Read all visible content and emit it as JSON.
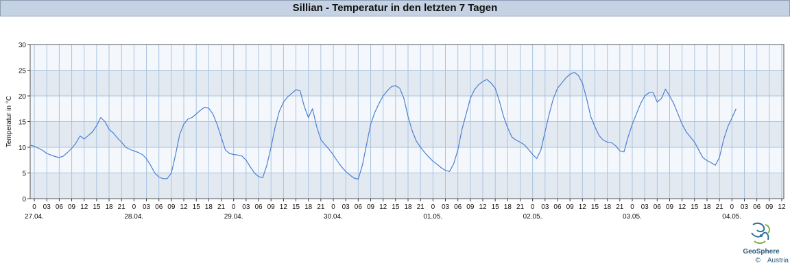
{
  "title": "Sillian - Temperatur in den letzten 7 Tagen",
  "logo": {
    "name": "GeoSphere",
    "sub": "Austria",
    "copyright": "©"
  },
  "colors": {
    "line": "#4a7fd4",
    "band_dark": "#e3e9f1",
    "band_light": "#f4f7fb",
    "grid": "#a9c4df",
    "title_bg": "#c5d2e3"
  },
  "chart_data": {
    "type": "line",
    "title": "Sillian - Temperatur in den letzten 7 Tagen",
    "ylabel": "Temperatur in °C",
    "xlabel": "",
    "ylim": [
      0,
      30
    ],
    "yticks": [
      0,
      5,
      10,
      15,
      20,
      25,
      30
    ],
    "xlim_hours": [
      -1,
      180.5
    ],
    "x_tick_labels": [
      "0",
      "03",
      "06",
      "09",
      "12",
      "15",
      "18",
      "21",
      "0",
      "03",
      "06",
      "09",
      "12",
      "15",
      "18",
      "21",
      "0",
      "03",
      "06",
      "09",
      "12",
      "15",
      "18",
      "21",
      "0",
      "03",
      "06",
      "09",
      "12",
      "15",
      "18",
      "21",
      "0",
      "03",
      "06",
      "09",
      "12",
      "15",
      "18",
      "21",
      "0",
      "03",
      "06",
      "09",
      "12",
      "15",
      "18",
      "21",
      "0",
      "03",
      "06",
      "09",
      "12",
      "15",
      "18",
      "21",
      "0",
      "03",
      "06",
      "09",
      "12"
    ],
    "dates": [
      "27.04.",
      "28.04.",
      "29.04.",
      "30.04.",
      "01.05.",
      "02.05.",
      "03.05.",
      "04.05."
    ],
    "grid": true,
    "series": [
      {
        "points": [
          [
            -1,
            10.4
          ],
          [
            0,
            10.2
          ],
          [
            1,
            9.8
          ],
          [
            2,
            9.4
          ],
          [
            3,
            8.8
          ],
          [
            4,
            8.5
          ],
          [
            5,
            8.2
          ],
          [
            6,
            8.0
          ],
          [
            7,
            8.3
          ],
          [
            8,
            9.0
          ],
          [
            9,
            9.8
          ],
          [
            10,
            10.8
          ],
          [
            11,
            12.2
          ],
          [
            12,
            11.6
          ],
          [
            13,
            12.3
          ],
          [
            14,
            13.0
          ],
          [
            15,
            14.2
          ],
          [
            16,
            15.8
          ],
          [
            17,
            15.0
          ],
          [
            18,
            13.5
          ],
          [
            19,
            12.8
          ],
          [
            20,
            11.8
          ],
          [
            21,
            11.0
          ],
          [
            22,
            10.0
          ],
          [
            23,
            9.6
          ],
          [
            24,
            9.3
          ],
          [
            25,
            9.0
          ],
          [
            26,
            8.6
          ],
          [
            27,
            7.8
          ],
          [
            28,
            6.5
          ],
          [
            29,
            5.0
          ],
          [
            30,
            4.2
          ],
          [
            31,
            3.9
          ],
          [
            32,
            3.9
          ],
          [
            33,
            5.0
          ],
          [
            34,
            8.5
          ],
          [
            35,
            12.5
          ],
          [
            36,
            14.5
          ],
          [
            37,
            15.5
          ],
          [
            38,
            15.8
          ],
          [
            39,
            16.5
          ],
          [
            40,
            17.2
          ],
          [
            41,
            17.8
          ],
          [
            42,
            17.6
          ],
          [
            43,
            16.5
          ],
          [
            44,
            14.5
          ],
          [
            45,
            12.0
          ],
          [
            46,
            9.5
          ],
          [
            47,
            8.8
          ],
          [
            48,
            8.6
          ],
          [
            49,
            8.5
          ],
          [
            50,
            8.3
          ],
          [
            51,
            7.5
          ],
          [
            52,
            6.2
          ],
          [
            53,
            5.0
          ],
          [
            54,
            4.3
          ],
          [
            55,
            4.1
          ],
          [
            56,
            6.5
          ],
          [
            57,
            10.0
          ],
          [
            58,
            14.0
          ],
          [
            59,
            17.0
          ],
          [
            60,
            18.8
          ],
          [
            61,
            19.8
          ],
          [
            62,
            20.5
          ],
          [
            63,
            21.2
          ],
          [
            64,
            21.0
          ],
          [
            65,
            18.0
          ],
          [
            66,
            15.8
          ],
          [
            67,
            17.5
          ],
          [
            68,
            14.0
          ],
          [
            69,
            11.5
          ],
          [
            70,
            10.5
          ],
          [
            71,
            9.6
          ],
          [
            72,
            8.5
          ],
          [
            73,
            7.3
          ],
          [
            74,
            6.2
          ],
          [
            75,
            5.3
          ],
          [
            76,
            4.6
          ],
          [
            77,
            4.0
          ],
          [
            78,
            3.8
          ],
          [
            79,
            6.5
          ],
          [
            80,
            10.5
          ],
          [
            81,
            14.5
          ],
          [
            82,
            16.8
          ],
          [
            83,
            18.5
          ],
          [
            84,
            20.0
          ],
          [
            85,
            21.0
          ],
          [
            86,
            21.8
          ],
          [
            87,
            22.0
          ],
          [
            88,
            21.5
          ],
          [
            89,
            19.5
          ],
          [
            90,
            16.0
          ],
          [
            91,
            13.2
          ],
          [
            92,
            11.2
          ],
          [
            93,
            10.0
          ],
          [
            94,
            9.0
          ],
          [
            95,
            8.1
          ],
          [
            96,
            7.3
          ],
          [
            97,
            6.7
          ],
          [
            98,
            6.0
          ],
          [
            99,
            5.5
          ],
          [
            100,
            5.3
          ],
          [
            101,
            6.8
          ],
          [
            102,
            9.5
          ],
          [
            103,
            13.5
          ],
          [
            104,
            16.5
          ],
          [
            105,
            19.5
          ],
          [
            106,
            21.2
          ],
          [
            107,
            22.2
          ],
          [
            108,
            22.8
          ],
          [
            109,
            23.2
          ],
          [
            110,
            22.5
          ],
          [
            111,
            21.5
          ],
          [
            112,
            19.0
          ],
          [
            113,
            16.0
          ],
          [
            114,
            13.8
          ],
          [
            115,
            12.0
          ],
          [
            116,
            11.4
          ],
          [
            117,
            11.0
          ],
          [
            118,
            10.5
          ],
          [
            119,
            9.6
          ],
          [
            120,
            8.6
          ],
          [
            121,
            7.8
          ],
          [
            122,
            9.5
          ],
          [
            123,
            13.0
          ],
          [
            124,
            16.5
          ],
          [
            125,
            19.5
          ],
          [
            126,
            21.5
          ],
          [
            127,
            22.5
          ],
          [
            128,
            23.5
          ],
          [
            129,
            24.2
          ],
          [
            130,
            24.6
          ],
          [
            131,
            24.0
          ],
          [
            132,
            22.5
          ],
          [
            133,
            19.5
          ],
          [
            134,
            16.0
          ],
          [
            135,
            14.0
          ],
          [
            136,
            12.3
          ],
          [
            137,
            11.4
          ],
          [
            138,
            11.0
          ],
          [
            139,
            10.9
          ],
          [
            140,
            10.3
          ],
          [
            141,
            9.3
          ],
          [
            142,
            9.1
          ],
          [
            143,
            12.0
          ],
          [
            144,
            14.5
          ],
          [
            145,
            16.5
          ],
          [
            146,
            18.5
          ],
          [
            147,
            20.0
          ],
          [
            148,
            20.6
          ],
          [
            149,
            20.7
          ],
          [
            150,
            18.8
          ],
          [
            151,
            19.5
          ],
          [
            152,
            21.3
          ],
          [
            153,
            20.0
          ],
          [
            154,
            18.5
          ],
          [
            155,
            16.5
          ],
          [
            156,
            14.5
          ],
          [
            157,
            13.0
          ],
          [
            158,
            12.0
          ],
          [
            159,
            11.0
          ],
          [
            160,
            9.5
          ],
          [
            161,
            8.0
          ],
          [
            162,
            7.4
          ],
          [
            163,
            7.0
          ],
          [
            164,
            6.5
          ],
          [
            165,
            8.0
          ],
          [
            166,
            11.5
          ],
          [
            167,
            14.0
          ],
          [
            168,
            15.7
          ],
          [
            169,
            17.5
          ]
        ]
      }
    ]
  }
}
